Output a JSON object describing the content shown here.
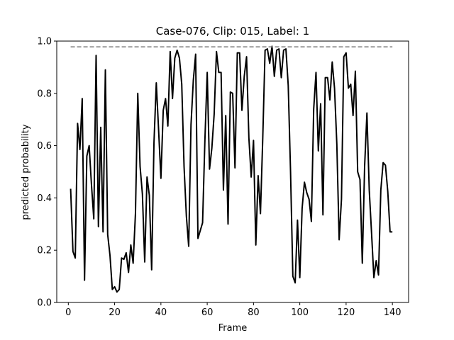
{
  "chart_data": {
    "type": "line",
    "title": "Case-076, Clip: 015, Label: 1",
    "xlabel": "Frame",
    "ylabel": "predicted probability",
    "xlim": [
      -5,
      147
    ],
    "ylim": [
      0.0,
      1.0
    ],
    "xticks": [
      0,
      20,
      40,
      60,
      80,
      100,
      120,
      140
    ],
    "yticks": [
      "0.0",
      "0.2",
      "0.4",
      "0.6",
      "0.8",
      "1.0"
    ],
    "grid": false,
    "legend": "none",
    "series": [
      {
        "style": "solid",
        "color": "#000000",
        "x_start": 1,
        "values": [
          0.435,
          0.195,
          0.17,
          0.685,
          0.585,
          0.78,
          0.085,
          0.56,
          0.6,
          0.45,
          0.32,
          0.945,
          0.29,
          0.67,
          0.27,
          0.89,
          0.26,
          0.18,
          0.05,
          0.06,
          0.04,
          0.05,
          0.17,
          0.165,
          0.19,
          0.115,
          0.22,
          0.15,
          0.34,
          0.8,
          0.52,
          0.415,
          0.155,
          0.48,
          0.41,
          0.125,
          0.61,
          0.84,
          0.66,
          0.475,
          0.735,
          0.78,
          0.675,
          0.96,
          0.78,
          0.935,
          0.965,
          0.935,
          0.835,
          0.52,
          0.33,
          0.215,
          0.68,
          0.85,
          0.95,
          0.245,
          0.275,
          0.305,
          0.62,
          0.88,
          0.51,
          0.59,
          0.72,
          0.96,
          0.88,
          0.88,
          0.43,
          0.715,
          0.3,
          0.805,
          0.8,
          0.515,
          0.955,
          0.955,
          0.735,
          0.865,
          0.94,
          0.63,
          0.48,
          0.62,
          0.22,
          0.485,
          0.34,
          0.63,
          0.965,
          0.97,
          0.915,
          0.98,
          0.865,
          0.965,
          0.97,
          0.86,
          0.965,
          0.97,
          0.83,
          0.5,
          0.1,
          0.075,
          0.315,
          0.095,
          0.36,
          0.46,
          0.42,
          0.395,
          0.31,
          0.74,
          0.88,
          0.58,
          0.76,
          0.335,
          0.86,
          0.86,
          0.775,
          0.92,
          0.82,
          0.605,
          0.24,
          0.395,
          0.94,
          0.955,
          0.82,
          0.835,
          0.715,
          0.885,
          0.5,
          0.47,
          0.15,
          0.52,
          0.725,
          0.43,
          0.265,
          0.095,
          0.16,
          0.105,
          0.43,
          0.535,
          0.525,
          0.425,
          0.27,
          0.27
        ]
      },
      {
        "style": "dashed",
        "color": "#7f7f7f",
        "x": [
          1,
          140
        ],
        "values": [
          0.978,
          0.978
        ]
      }
    ]
  }
}
